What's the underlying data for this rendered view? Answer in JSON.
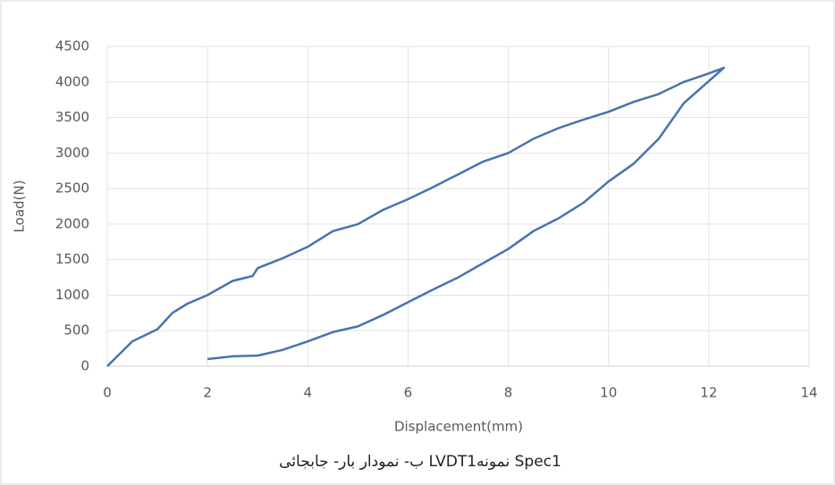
{
  "chart_data": {
    "type": "line",
    "x_label": "Displacement(mm)",
    "y_label": "Load(N)",
    "caption": "ب- نمودار بار- جابجائی LVDT1نمونه Spec1",
    "x": [
      0,
      0.5,
      1,
      1.3,
      1.6,
      2,
      2.5,
      2.9,
      3,
      3.5,
      4,
      4.5,
      5,
      5.5,
      6,
      6.5,
      7,
      7.5,
      8,
      8.5,
      9,
      9.5,
      10,
      10.5,
      11,
      11.5,
      12,
      12.3,
      11.5,
      11,
      10.5,
      10,
      9.5,
      9,
      8.5,
      8,
      7.5,
      7,
      6.5,
      6,
      5.5,
      5,
      4.5,
      4,
      3.5,
      3,
      2.5,
      2
    ],
    "values": [
      0,
      350,
      520,
      750,
      880,
      1000,
      1200,
      1270,
      1380,
      1520,
      1680,
      1900,
      2000,
      2200,
      2350,
      2520,
      2700,
      2880,
      3000,
      3200,
      3350,
      3470,
      3580,
      3720,
      3830,
      4000,
      4120,
      4200,
      3700,
      3200,
      2850,
      2600,
      2300,
      2080,
      1900,
      1650,
      1450,
      1250,
      1080,
      900,
      720,
      560,
      480,
      350,
      230,
      150,
      140,
      100
    ],
    "color": "#4a72b0",
    "xlim": [
      0,
      14
    ],
    "xticks": [
      0,
      2,
      4,
      6,
      8,
      10,
      12,
      14
    ],
    "ylim": [
      0,
      4500
    ],
    "yticks": [
      0,
      500,
      1000,
      1500,
      2000,
      2500,
      3000,
      3500,
      4000,
      4500
    ],
    "grid": true
  }
}
